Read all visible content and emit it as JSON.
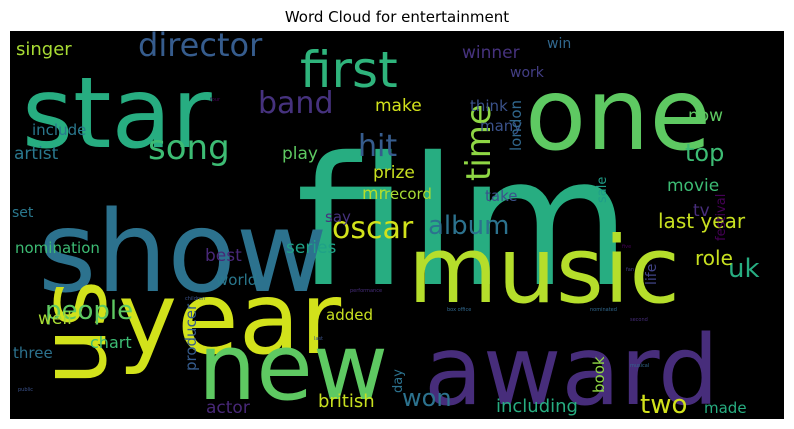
{
  "chart_data": {
    "type": "wordcloud",
    "title": "Word Cloud for entertainment",
    "background": "#000000",
    "words": [
      {
        "text": "film",
        "color": "#27ad81"
      },
      {
        "text": "show",
        "color": "#2c728e"
      },
      {
        "text": "star",
        "color": "#27ad81"
      },
      {
        "text": "one",
        "color": "#5ec962"
      },
      {
        "text": "year",
        "color": "#d2e21b"
      },
      {
        "text": "music",
        "color": "#b5de2b"
      },
      {
        "text": "award",
        "color": "#472d7b"
      },
      {
        "text": "new",
        "color": "#5ec962"
      },
      {
        "text": "us",
        "color": "#d2e21b"
      },
      {
        "text": "first",
        "color": "#2fb47c"
      },
      {
        "text": "song",
        "color": "#3dbc74"
      },
      {
        "text": "director",
        "color": "#365c8d"
      },
      {
        "text": "time",
        "color": "#8fd744"
      },
      {
        "text": "band",
        "color": "#46327e"
      },
      {
        "text": "hit",
        "color": "#365c8d"
      },
      {
        "text": "oscar",
        "color": "#d2e21b"
      },
      {
        "text": "album",
        "color": "#2c728e"
      },
      {
        "text": "people",
        "color": "#5ec962"
      },
      {
        "text": "won",
        "color": "#2c728e"
      },
      {
        "text": "two",
        "color": "#d2e21b"
      },
      {
        "text": "uk",
        "color": "#27ad81"
      },
      {
        "text": "top",
        "color": "#3dbc74"
      },
      {
        "text": "last year",
        "color": "#c8e020"
      },
      {
        "text": "singer",
        "color": "#a8db34"
      },
      {
        "text": "winner",
        "color": "#46327e"
      },
      {
        "text": "win",
        "color": "#31688e"
      },
      {
        "text": "work",
        "color": "#433e85"
      },
      {
        "text": "make",
        "color": "#d2e21b"
      },
      {
        "text": "now",
        "color": "#5ec962"
      },
      {
        "text": "think",
        "color": "#3b528b"
      },
      {
        "text": "many",
        "color": "#3b528b"
      },
      {
        "text": "include",
        "color": "#2a788e"
      },
      {
        "text": "artist",
        "color": "#2a788e"
      },
      {
        "text": "play",
        "color": "#5ec962"
      },
      {
        "text": "mr",
        "color": "#b5de2b"
      },
      {
        "text": "record",
        "color": "#a8db34"
      },
      {
        "text": "prize",
        "color": "#c8e020"
      },
      {
        "text": "movie",
        "color": "#3dbc74"
      },
      {
        "text": "tv",
        "color": "#472d7b"
      },
      {
        "text": "london",
        "color": "#31688e"
      },
      {
        "text": "take",
        "color": "#3b528b"
      },
      {
        "text": "role",
        "color": "#c8e020"
      },
      {
        "text": "say",
        "color": "#46327e"
      },
      {
        "text": "set",
        "color": "#2a788e"
      },
      {
        "text": "best",
        "color": "#482878"
      },
      {
        "text": "series",
        "color": "#1fa187"
      },
      {
        "text": "world",
        "color": "#2a788e"
      },
      {
        "text": "nomination",
        "color": "#3dbc74"
      },
      {
        "text": "sale",
        "color": "#1f9e89"
      },
      {
        "text": "festival",
        "color": "#440154"
      },
      {
        "text": "well",
        "color": "#a8db34"
      },
      {
        "text": "added",
        "color": "#c8e020"
      },
      {
        "text": "three",
        "color": "#2c728e"
      },
      {
        "text": "chart",
        "color": "#3dbc74"
      },
      {
        "text": "producer",
        "color": "#365c8d"
      },
      {
        "text": "day",
        "color": "#2c728e"
      },
      {
        "text": "book",
        "color": "#8fd744"
      },
      {
        "text": "life",
        "color": "#414487"
      },
      {
        "text": "actor",
        "color": "#482878"
      },
      {
        "text": "british",
        "color": "#c8e020"
      },
      {
        "text": "including",
        "color": "#27ad81"
      },
      {
        "text": "made",
        "color": "#27ad81"
      },
      {
        "text": "performance",
        "color": "#472d7b"
      },
      {
        "text": "box office",
        "color": "#31688e"
      },
      {
        "text": "nominated",
        "color": "#31688e"
      },
      {
        "text": "children",
        "color": "#3b528b"
      },
      {
        "text": "musical",
        "color": "#31688e"
      },
      {
        "text": "second",
        "color": "#472d7b"
      },
      {
        "text": "fan",
        "color": "#433e85"
      },
      {
        "text": "five",
        "color": "#440154"
      },
      {
        "text": "last",
        "color": "#3b528b"
      },
      {
        "text": "public",
        "color": "#3b528b"
      },
      {
        "text": "four",
        "color": "#440154"
      }
    ]
  }
}
